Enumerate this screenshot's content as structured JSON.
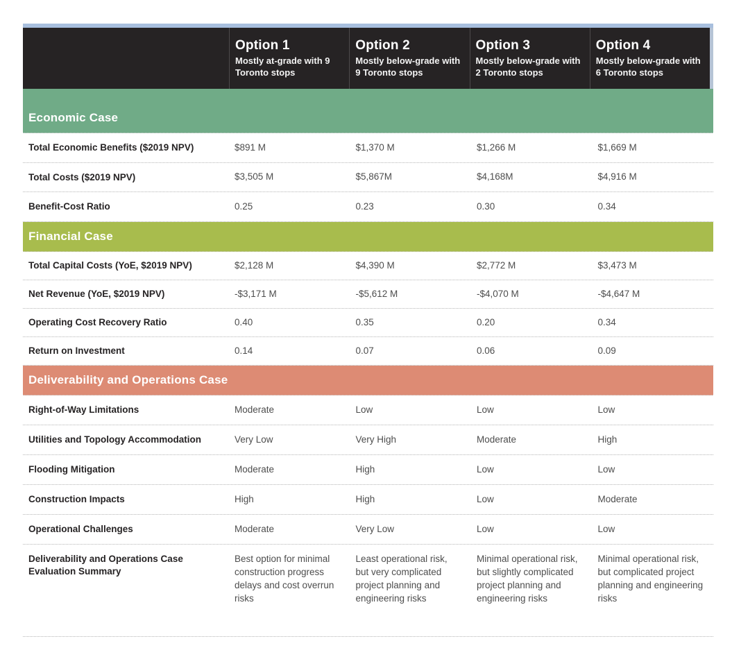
{
  "colors": {
    "top_strip": "#a8bfde",
    "header_bg": "#262324",
    "economic": "#70ab87",
    "financial": "#a8bc4d",
    "deliverability": "#dd8b74"
  },
  "chart_data": {
    "type": "table",
    "columns": [
      {
        "title": "Option 1",
        "subtitle": "Mostly at-grade with 9 Toronto stops"
      },
      {
        "title": "Option 2",
        "subtitle": "Mostly below-grade with 9 Toronto stops"
      },
      {
        "title": "Option 3",
        "subtitle": "Mostly below-grade with 2 Toronto stops"
      },
      {
        "title": "Option 4",
        "subtitle": "Mostly below-grade with 6 Toronto stops"
      }
    ],
    "sections": [
      {
        "title": "Economic Case",
        "rows": [
          {
            "label": "Total Economic Benefits ($2019 NPV)",
            "values": [
              "$891 M",
              "$1,370 M",
              "$1,266 M",
              "$1,669 M"
            ]
          },
          {
            "label": "Total Costs ($2019 NPV)",
            "values": [
              "$3,505 M",
              "$5,867M",
              "$4,168M",
              "$4,916 M"
            ]
          },
          {
            "label": "Benefit-Cost Ratio",
            "values": [
              "0.25",
              "0.23",
              "0.30",
              "0.34"
            ]
          }
        ]
      },
      {
        "title": "Financial Case",
        "rows": [
          {
            "label": "Total Capital Costs (YoE, $2019 NPV)",
            "values": [
              "$2,128 M",
              "$4,390 M",
              "$2,772 M",
              "$3,473 M"
            ]
          },
          {
            "label": "Net Revenue (YoE, $2019 NPV)",
            "values": [
              "-$3,171 M",
              "-$5,612 M",
              "-$4,070 M",
              "-$4,647 M"
            ]
          },
          {
            "label": "Operating Cost Recovery Ratio",
            "values": [
              "0.40",
              "0.35",
              "0.20",
              "0.34"
            ]
          },
          {
            "label": "Return on Investment",
            "values": [
              "0.14",
              "0.07",
              "0.06",
              "0.09"
            ]
          }
        ]
      },
      {
        "title": "Deliverability and Operations Case",
        "rows": [
          {
            "label": "Right-of-Way Limitations",
            "values": [
              "Moderate",
              "Low",
              "Low",
              "Low"
            ]
          },
          {
            "label": "Utilities and Topology Accommodation",
            "values": [
              "Very Low",
              "Very High",
              "Moderate",
              "High"
            ]
          },
          {
            "label": "Flooding Mitigation",
            "values": [
              "Moderate",
              "High",
              "Low",
              "Low"
            ]
          },
          {
            "label": "Construction Impacts",
            "values": [
              "High",
              "High",
              "Low",
              "Moderate"
            ]
          },
          {
            "label": "Operational Challenges",
            "values": [
              "Moderate",
              "Very Low",
              "Low",
              "Low"
            ]
          },
          {
            "label": "Deliverability and Operations Case Evaluation Summary",
            "values": [
              "Best option for minimal construction progress delays and cost overrun risks",
              "Least operational risk, but very complicated project planning and engineering risks",
              "Minimal operational risk, but slightly complicated project planning and engineering risks",
              "Minimal operational risk, but complicated project planning and engineering risks"
            ]
          }
        ]
      }
    ]
  }
}
